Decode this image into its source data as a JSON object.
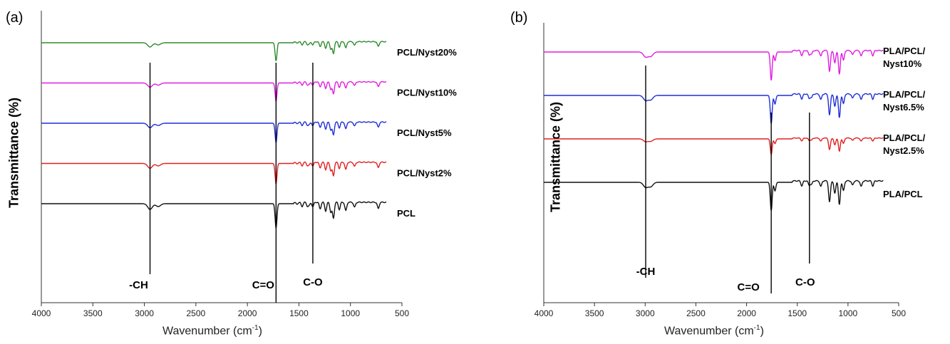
{
  "chart_data": [
    {
      "type": "line",
      "panel_label": "(a)",
      "ylabel": "Transmittance (%)",
      "xlabel": "Wavenumber (cm",
      "xlabel_sup": "-1",
      "xlabel_close": ")",
      "xlim": [
        4000,
        500
      ],
      "xticks": [
        4000,
        3500,
        3000,
        2500,
        2000,
        1500,
        1000,
        500
      ],
      "grid": false,
      "series": [
        {
          "name": "PCL/Nyst20%",
          "color": "#2e8b2e"
        },
        {
          "name": "PCL/Nyst10%",
          "color": "#e01ee0"
        },
        {
          "name": "PCL/Nyst5%",
          "color": "#1f2fd6"
        },
        {
          "name": "PCL/Nyst2%",
          "color": "#e02020"
        },
        {
          "name": "PCL",
          "color": "#111111"
        }
      ],
      "annotations": [
        {
          "label": "-CH",
          "x": 2945
        },
        {
          "label": "C=O",
          "x": 1722
        },
        {
          "label": "C-O",
          "x": 1365
        }
      ]
    },
    {
      "type": "line",
      "panel_label": "(b)",
      "ylabel": "Transmittance (%)",
      "xlabel": "Wavenumber (cm",
      "xlabel_sup": "-1",
      "xlabel_close": ")",
      "xlim": [
        4000,
        500
      ],
      "xticks": [
        4000,
        3500,
        3000,
        2500,
        2000,
        1500,
        1000,
        500
      ],
      "grid": false,
      "series": [
        {
          "name": "PLA/PCL/\nNyst10%",
          "color": "#e01ee0"
        },
        {
          "name": "PLA/PCL/\nNyst6.5%",
          "color": "#1f2fd6"
        },
        {
          "name": "PLA/PCL/\nNyst2.5%",
          "color": "#e02020"
        },
        {
          "name": "PLA/PCL",
          "color": "#111111"
        }
      ],
      "annotations": [
        {
          "label": "-CH",
          "x": 2995
        },
        {
          "label": "C=O",
          "x": 1757
        },
        {
          "label": "C-O",
          "x": 1380
        }
      ]
    }
  ]
}
